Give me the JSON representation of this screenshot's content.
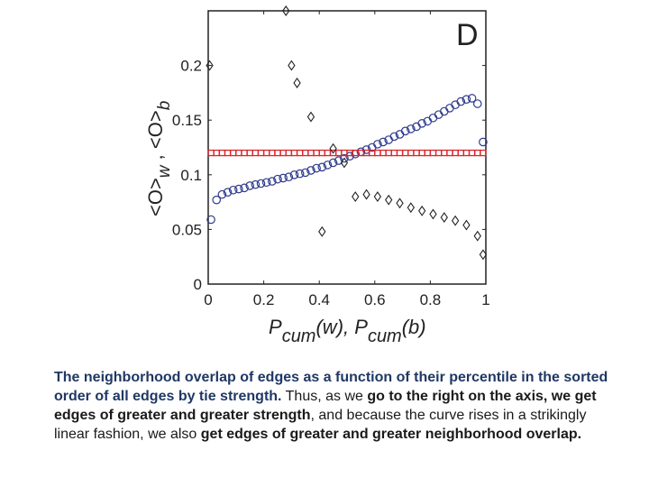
{
  "chart_data": {
    "type": "scatter",
    "panel_label": "D",
    "xlim": [
      0,
      1
    ],
    "ylim": [
      0,
      0.25
    ],
    "x_ticks": [
      0,
      0.2,
      0.4,
      0.6,
      0.8,
      1
    ],
    "x_tick_labels": [
      "0",
      "0.2",
      "0.4",
      "0.6",
      "0.8",
      "1"
    ],
    "y_ticks": [
      0,
      0.05,
      0.1,
      0.15,
      0.2
    ],
    "y_tick_labels": [
      "0",
      "0.05",
      "0.1",
      "0.15",
      "0.2"
    ],
    "xlabel": {
      "p1": "P",
      "s1": "cum",
      "t1": "(w), ",
      "p2": "P",
      "s2": "cum",
      "t2": "(b)"
    },
    "ylabel": {
      "a": "<O>",
      "s1": "w",
      "b": " , <O>",
      "s2": "b"
    },
    "grid": false,
    "legend": "none",
    "series": [
      {
        "marker": "circle",
        "color": "#2e3a8c",
        "x": [
          0.01,
          0.03,
          0.05,
          0.07,
          0.09,
          0.11,
          0.13,
          0.15,
          0.17,
          0.19,
          0.21,
          0.23,
          0.25,
          0.27,
          0.29,
          0.31,
          0.33,
          0.35,
          0.37,
          0.39,
          0.41,
          0.43,
          0.45,
          0.47,
          0.49,
          0.51,
          0.53,
          0.55,
          0.57,
          0.59,
          0.61,
          0.63,
          0.65,
          0.67,
          0.69,
          0.71,
          0.73,
          0.75,
          0.77,
          0.79,
          0.81,
          0.83,
          0.85,
          0.87,
          0.89,
          0.91,
          0.93,
          0.95,
          0.97,
          0.99
        ],
        "y": [
          0.059,
          0.077,
          0.082,
          0.084,
          0.086,
          0.087,
          0.088,
          0.09,
          0.091,
          0.092,
          0.093,
          0.094,
          0.096,
          0.097,
          0.098,
          0.1,
          0.101,
          0.102,
          0.104,
          0.106,
          0.107,
          0.109,
          0.111,
          0.113,
          0.115,
          0.117,
          0.119,
          0.121,
          0.123,
          0.125,
          0.128,
          0.13,
          0.132,
          0.135,
          0.137,
          0.14,
          0.142,
          0.144,
          0.147,
          0.149,
          0.152,
          0.155,
          0.158,
          0.161,
          0.164,
          0.167,
          0.169,
          0.17,
          0.165,
          0.13
        ]
      },
      {
        "marker": "square",
        "color": "#d9262b",
        "x": [
          0.01,
          0.03,
          0.05,
          0.07,
          0.09,
          0.11,
          0.13,
          0.15,
          0.17,
          0.19,
          0.21,
          0.23,
          0.25,
          0.27,
          0.29,
          0.31,
          0.33,
          0.35,
          0.37,
          0.39,
          0.41,
          0.43,
          0.45,
          0.47,
          0.49,
          0.51,
          0.53,
          0.55,
          0.57,
          0.59,
          0.61,
          0.63,
          0.65,
          0.67,
          0.69,
          0.71,
          0.73,
          0.75,
          0.77,
          0.79,
          0.81,
          0.83,
          0.85,
          0.87,
          0.89,
          0.91,
          0.93,
          0.95,
          0.97,
          0.99
        ],
        "y": [
          0.12,
          0.12,
          0.12,
          0.12,
          0.12,
          0.12,
          0.12,
          0.12,
          0.12,
          0.12,
          0.12,
          0.12,
          0.12,
          0.12,
          0.12,
          0.12,
          0.12,
          0.12,
          0.12,
          0.12,
          0.12,
          0.12,
          0.12,
          0.12,
          0.12,
          0.12,
          0.12,
          0.12,
          0.12,
          0.12,
          0.12,
          0.12,
          0.12,
          0.12,
          0.12,
          0.12,
          0.12,
          0.12,
          0.12,
          0.12,
          0.12,
          0.12,
          0.12,
          0.12,
          0.12,
          0.12,
          0.12,
          0.12,
          0.12,
          0.12
        ]
      },
      {
        "marker": "diamond",
        "color": "#222222",
        "x": [
          0.005,
          0.28,
          0.3,
          0.32,
          0.37,
          0.41,
          0.45,
          0.49,
          0.53,
          0.57,
          0.61,
          0.65,
          0.69,
          0.73,
          0.77,
          0.81,
          0.85,
          0.89,
          0.93,
          0.97,
          0.99
        ],
        "y": [
          0.2,
          0.25,
          0.2,
          0.184,
          0.153,
          0.048,
          0.124,
          0.111,
          0.08,
          0.082,
          0.08,
          0.077,
          0.074,
          0.07,
          0.067,
          0.064,
          0.061,
          0.058,
          0.054,
          0.044,
          0.027
        ]
      }
    ]
  },
  "caption": {
    "s1": "The neighborhood overlap of edges as a function of their percentile in the sorted order of all edges by tie strength.",
    "s2": " Thus, as we ",
    "s3": "go to the right on the axis, we get edges of greater and greater strength",
    "s4": ", and because the curve rises in a strikingly linear fashion, we also ",
    "s5": "get edges of greater and greater neighborhood overlap."
  }
}
